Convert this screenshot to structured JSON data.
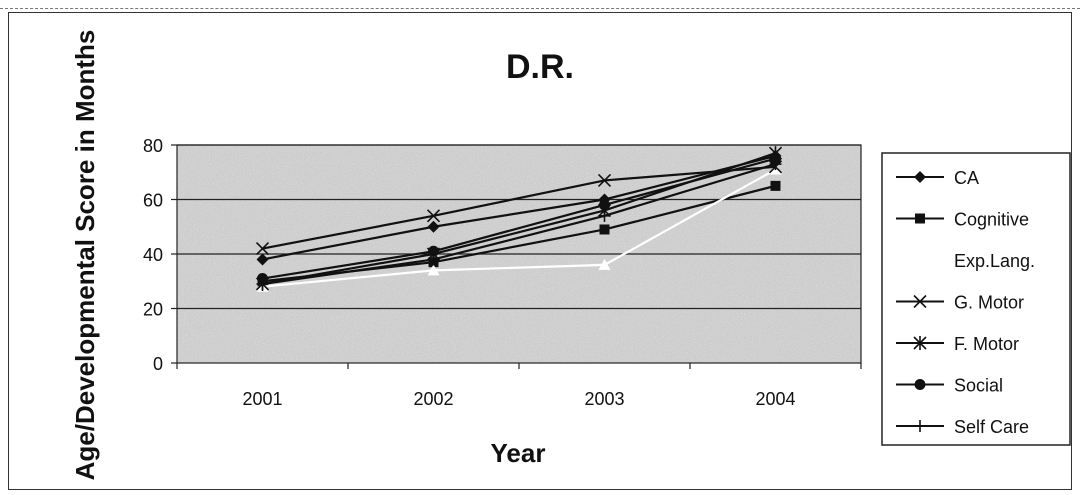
{
  "chart_data": {
    "type": "line",
    "title": "D.R.",
    "xlabel": "Year",
    "ylabel": "Age/Developmental Score in Months",
    "categories": [
      "2001",
      "2002",
      "2003",
      "2004"
    ],
    "ylim": [
      0,
      80
    ],
    "yticks": [
      0,
      20,
      40,
      60,
      80
    ],
    "grid": true,
    "legend_position": "right",
    "series": [
      {
        "name": "CA",
        "marker": "diamond",
        "color": "#111111",
        "values": [
          38,
          50,
          60,
          76
        ]
      },
      {
        "name": "Cognitive",
        "marker": "square",
        "color": "#111111",
        "values": [
          30,
          37,
          49,
          65
        ]
      },
      {
        "name": "Exp.Lang.",
        "marker": "triangle",
        "color": "#ffffff",
        "values": [
          28,
          34,
          36,
          71
        ]
      },
      {
        "name": "G. Motor",
        "marker": "x",
        "color": "#111111",
        "values": [
          42,
          54,
          67,
          72
        ]
      },
      {
        "name": "F. Motor",
        "marker": "star",
        "color": "#111111",
        "values": [
          29,
          40,
          56,
          77
        ]
      },
      {
        "name": "Social",
        "marker": "circle",
        "color": "#111111",
        "values": [
          31,
          41,
          58,
          75
        ]
      },
      {
        "name": "Self Care",
        "marker": "plus",
        "color": "#111111",
        "values": [
          29,
          38,
          54,
          73
        ]
      }
    ]
  }
}
